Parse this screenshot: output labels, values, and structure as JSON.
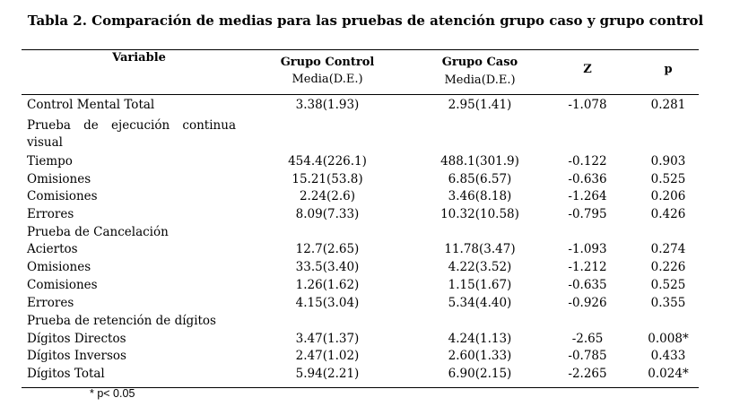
{
  "title": "Tabla 2. Comparación de medias para las pruebas de atención grupo caso y grupo control",
  "headers": {
    "variable": "Variable",
    "control": "Grupo Control",
    "control_sub": "Media(D.E.)",
    "caso": "Grupo Caso",
    "caso_sub": "Media(D.E.)",
    "z": "Z",
    "p": "p"
  },
  "rows": [
    {
      "variable": "Control Mental Total",
      "control": "3.38(1.93)",
      "caso": "2.95(1.41)",
      "z": "-1.078",
      "p": "0.281"
    },
    {
      "variable": "Prueba de ejecución continua visual",
      "control": "",
      "caso": "",
      "z": "",
      "p": ""
    },
    {
      "variable": "Tiempo",
      "control": "454.4(226.1)",
      "caso": "488.1(301.9)",
      "z": "-0.122",
      "p": "0.903"
    },
    {
      "variable": "Omisiones",
      "control": "15.21(53.8)",
      "caso": "6.85(6.57)",
      "z": "-0.636",
      "p": "0.525"
    },
    {
      "variable": "Comisiones",
      "control": "2.24(2.6)",
      "caso": "3.46(8.18)",
      "z": "-1.264",
      "p": "0.206"
    },
    {
      "variable": "Errores",
      "control": "8.09(7.33)",
      "caso": "10.32(10.58)",
      "z": "-0.795",
      "p": "0.426"
    },
    {
      "variable": "Prueba de Cancelación",
      "control": "",
      "caso": "",
      "z": "",
      "p": ""
    },
    {
      "variable": "Aciertos",
      "control": "12.7(2.65)",
      "caso": "11.78(3.47)",
      "z": "-1.093",
      "p": "0.274"
    },
    {
      "variable": "Omisiones",
      "control": "33.5(3.40)",
      "caso": "4.22(3.52)",
      "z": "-1.212",
      "p": "0.226"
    },
    {
      "variable": "Comisiones",
      "control": "1.26(1.62)",
      "caso": "1.15(1.67)",
      "z": "-0.635",
      "p": "0.525"
    },
    {
      "variable": "Errores",
      "control": "4.15(3.04)",
      "caso": "5.34(4.40)",
      "z": "-0.926",
      "p": "0.355"
    },
    {
      "variable": "Prueba de retención de dígitos",
      "control": "",
      "caso": "",
      "z": "",
      "p": ""
    },
    {
      "variable": "Dígitos Directos",
      "control": "3.47(1.37)",
      "caso": "4.24(1.13)",
      "z": "-2.65",
      "p": "0.008*"
    },
    {
      "variable": "Dígitos Inversos",
      "control": "2.47(1.02)",
      "caso": "2.60(1.33)",
      "z": "-0.785",
      "p": "0.433"
    },
    {
      "variable": "Dígitos Total",
      "control": "5.94(2.21)",
      "caso": "6.90(2.15)",
      "z": "-2.265",
      "p": "0.024*"
    }
  ],
  "footnote": "* p< 0.05"
}
